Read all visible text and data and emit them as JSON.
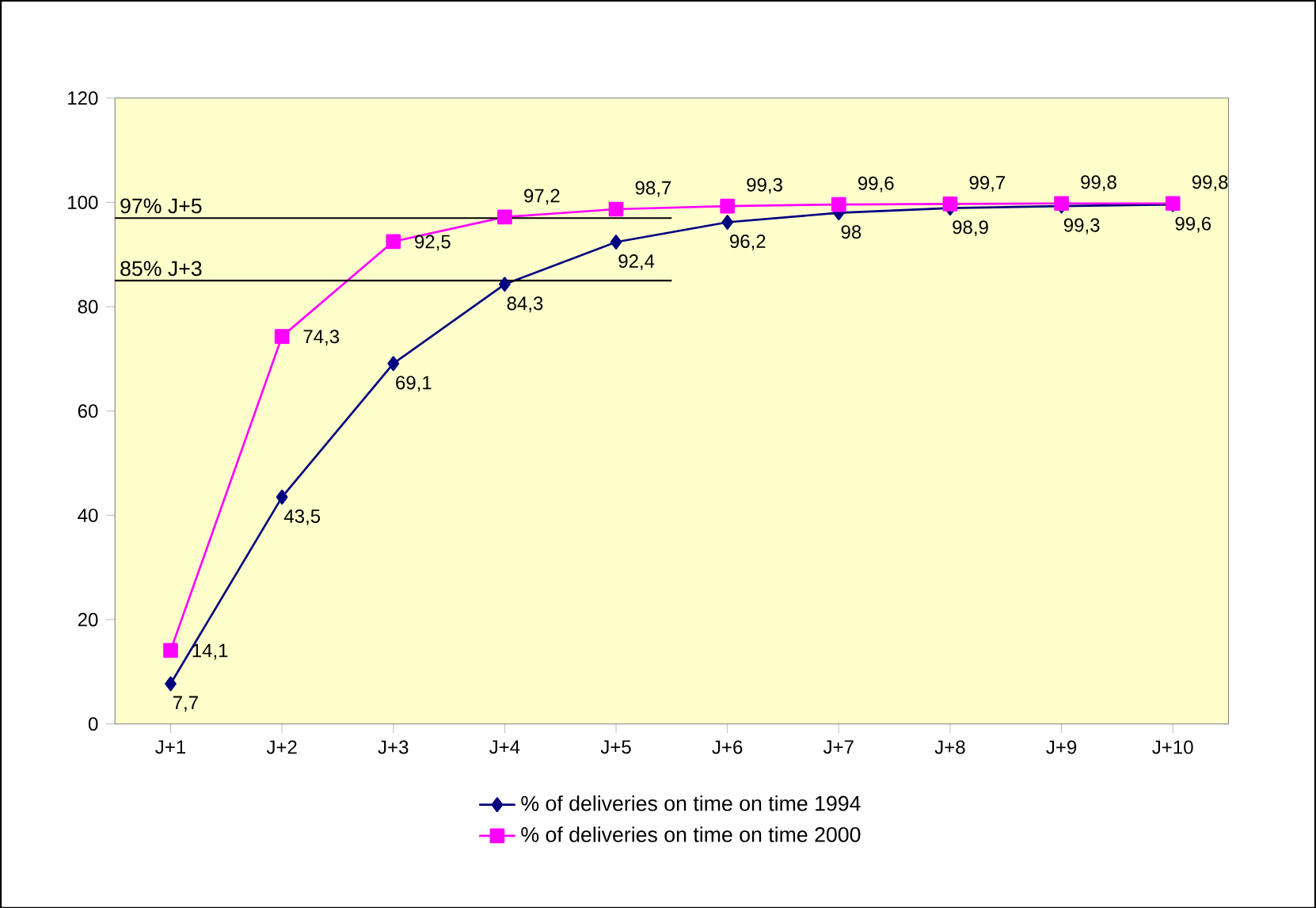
{
  "chart_data": {
    "type": "line",
    "categories": [
      "J+1",
      "J+2",
      "J+3",
      "J+4",
      "J+5",
      "J+6",
      "J+7",
      "J+8",
      "J+9",
      "J+10"
    ],
    "series": [
      {
        "name": "% of deliveries on time on time 1994",
        "color": "#000080",
        "marker": "diamond",
        "values": [
          7.7,
          43.5,
          69.1,
          84.3,
          92.4,
          96.2,
          98,
          98.9,
          99.3,
          99.6
        ],
        "value_labels": [
          "7,7",
          "43,5",
          "69,1",
          "84,3",
          "92,4",
          "96,2",
          "98",
          "98,9",
          "99,3",
          "99,6"
        ]
      },
      {
        "name": "% of deliveries on time on time 2000",
        "color": "#ff00ff",
        "marker": "square",
        "values": [
          14.1,
          74.3,
          92.5,
          97.2,
          98.7,
          99.3,
          99.6,
          99.7,
          99.8,
          99.8
        ],
        "value_labels": [
          "14,1",
          "74,3",
          "92,5",
          "97,2",
          "98,7",
          "99,3",
          "99,6",
          "99,7",
          "99,8",
          "99,8"
        ]
      }
    ],
    "ylim": [
      0,
      120
    ],
    "yticks": [
      0,
      20,
      40,
      60,
      80,
      100,
      120
    ],
    "ref_lines": [
      {
        "axis": "y",
        "value": 97,
        "label": "97%   J+5"
      },
      {
        "axis": "y",
        "value": 85,
        "label": "85%   J+3"
      }
    ],
    "grid": false,
    "legend": "bottom"
  }
}
